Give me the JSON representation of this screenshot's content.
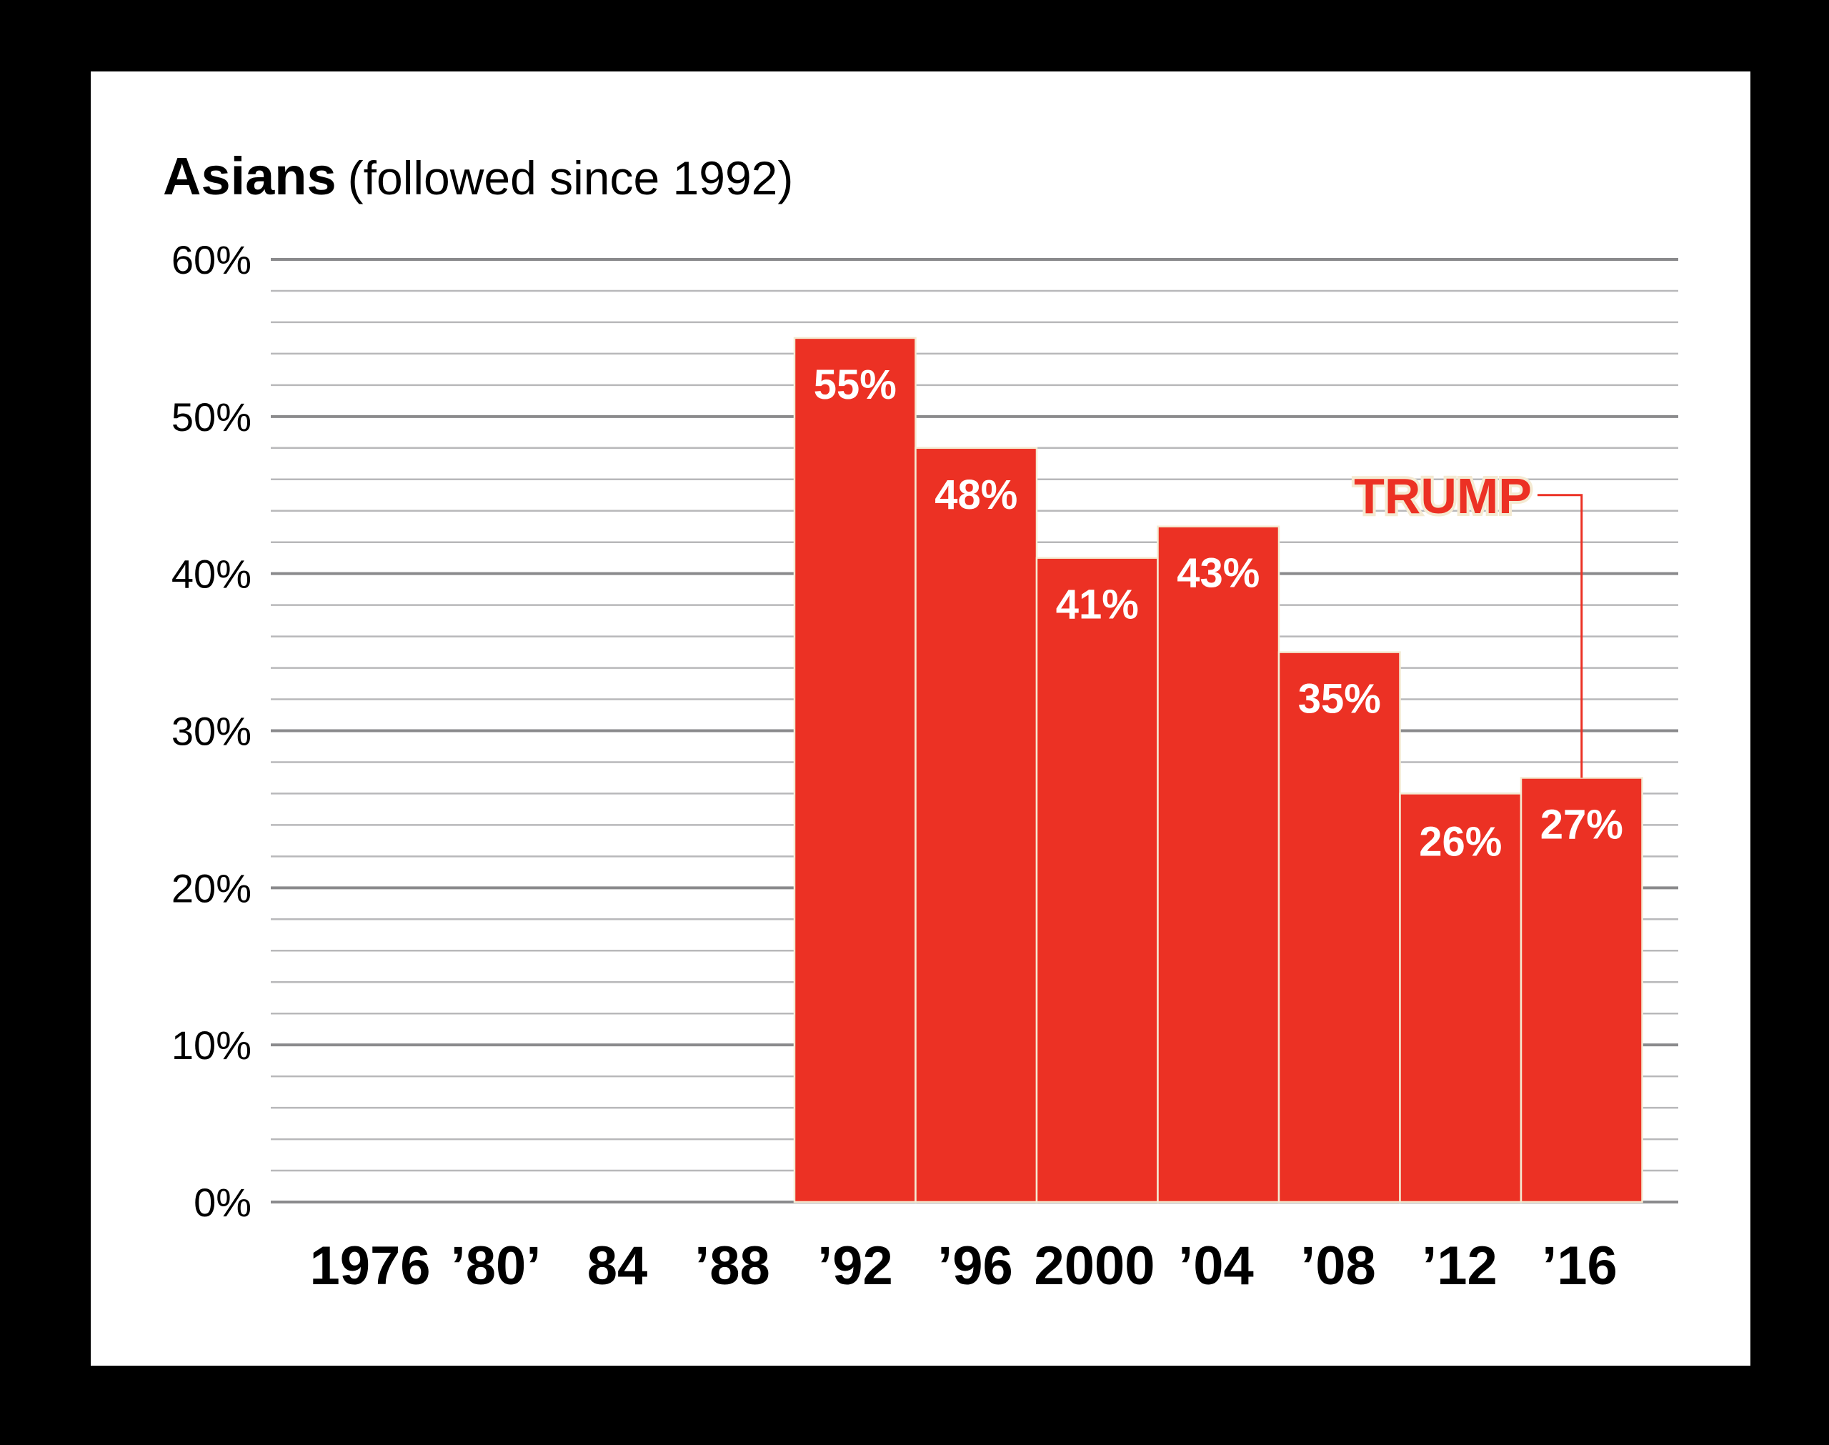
{
  "chart_data": {
    "type": "bar",
    "title": "Asians",
    "subtitle": "(followed since 1992)",
    "xlabel": "",
    "ylabel": "",
    "categories": [
      "1976",
      "’80’",
      "84",
      "’88",
      "’92",
      "’96",
      "2000",
      "’04",
      "’08",
      "’12",
      "’16"
    ],
    "values": [
      null,
      null,
      null,
      null,
      55,
      48,
      41,
      43,
      35,
      26,
      27
    ],
    "data_labels": [
      "",
      "",
      "",
      "",
      "55%",
      "48%",
      "41%",
      "43%",
      "35%",
      "26%",
      "27%"
    ],
    "ylim": [
      0,
      60
    ],
    "yticks": [
      0,
      10,
      20,
      30,
      40,
      50,
      60
    ],
    "ytick_labels": [
      "0%",
      "10%",
      "20%",
      "30%",
      "40%",
      "50%",
      "60%"
    ],
    "minor_grid_step": 2,
    "grid": true,
    "legend": "none",
    "bar_color": "#ec3124",
    "bar_outline_color": "#f4ead2",
    "annotations": [
      {
        "text": "TRUMP",
        "category": "’16",
        "value": 27,
        "color": "#ec3124"
      }
    ]
  },
  "colors": {
    "background": "#000000",
    "panel": "#ffffff",
    "major_grid": "#8a8a8c",
    "minor_grid": "#b8b8ba",
    "text": "#000000"
  }
}
